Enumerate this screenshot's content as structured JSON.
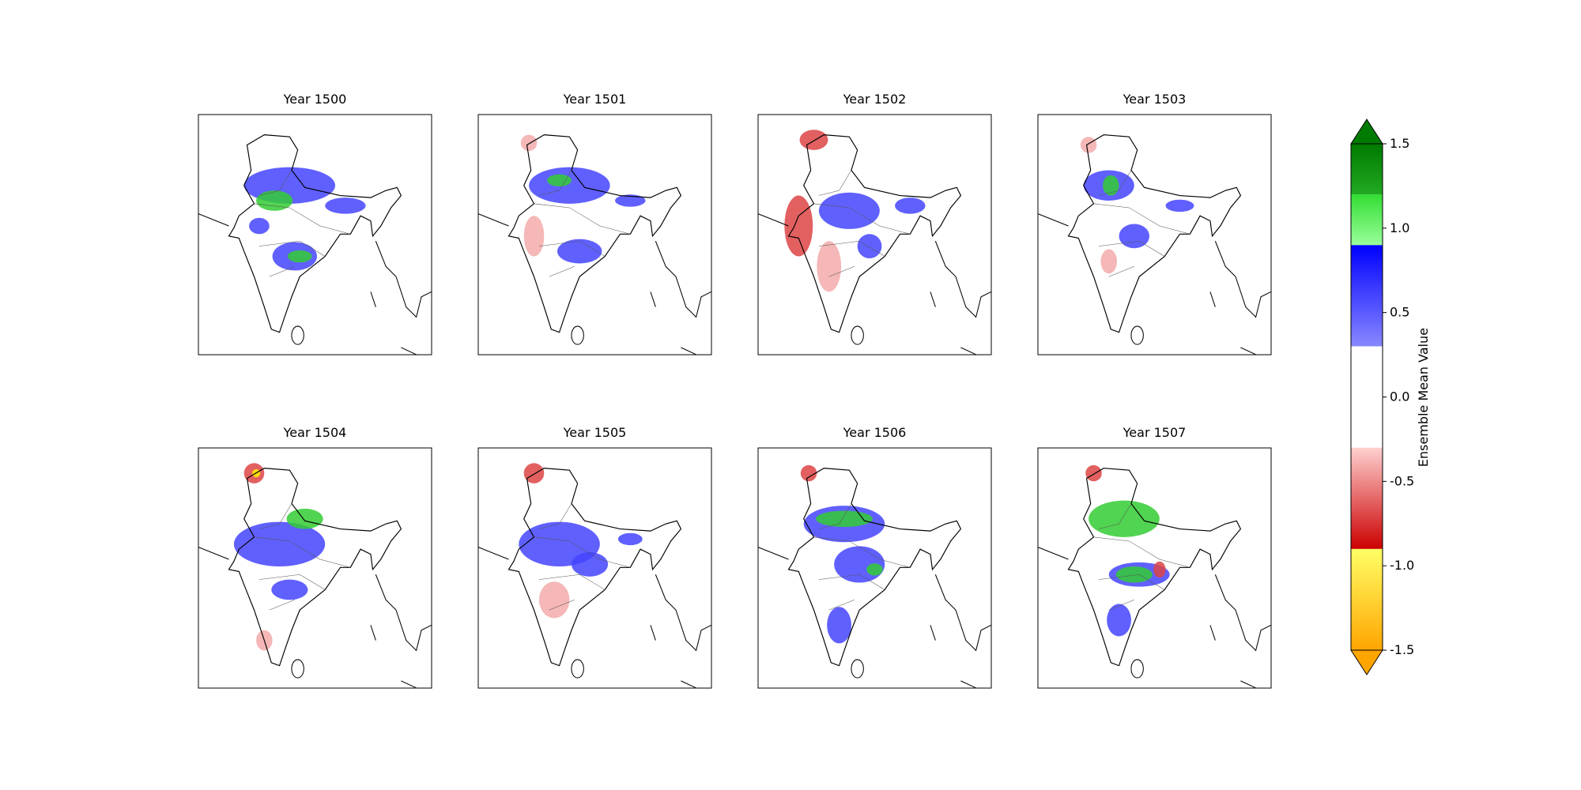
{
  "chart_data": {
    "type": "map-grid",
    "panels": [
      {
        "title": "Year 1500"
      },
      {
        "title": "Year 1501"
      },
      {
        "title": "Year 1502"
      },
      {
        "title": "Year 1503"
      },
      {
        "title": "Year 1504"
      },
      {
        "title": "Year 1505"
      },
      {
        "title": "Year 1506"
      },
      {
        "title": "Year 1507"
      }
    ],
    "colorbar": {
      "label": "Ensemble Mean Value",
      "lim": [
        -1.5,
        1.5
      ],
      "ticks": [
        -1.5,
        -1.0,
        -0.5,
        0.0,
        0.5,
        1.0,
        1.5
      ],
      "extend": "both",
      "extend_colors": [
        "#ffa500",
        "#007a00"
      ],
      "segments": [
        {
          "from": -1.5,
          "to": -0.9,
          "colors": [
            "#ffa500",
            "#ffff66"
          ]
        },
        {
          "from": -0.9,
          "to": -0.3,
          "colors": [
            "#cc0000",
            "#ffd0d0"
          ]
        },
        {
          "from": -0.3,
          "to": 0.3,
          "colors": [
            "#ffffff",
            "#ffffff"
          ]
        },
        {
          "from": 0.3,
          "to": 0.9,
          "colors": [
            "#8888ff",
            "#0000ff"
          ]
        },
        {
          "from": 0.9,
          "to": 1.2,
          "colors": [
            "#99ff99",
            "#33dd33"
          ]
        },
        {
          "from": 1.2,
          "to": 1.5,
          "colors": [
            "#22aa22",
            "#007a00"
          ]
        }
      ]
    }
  }
}
